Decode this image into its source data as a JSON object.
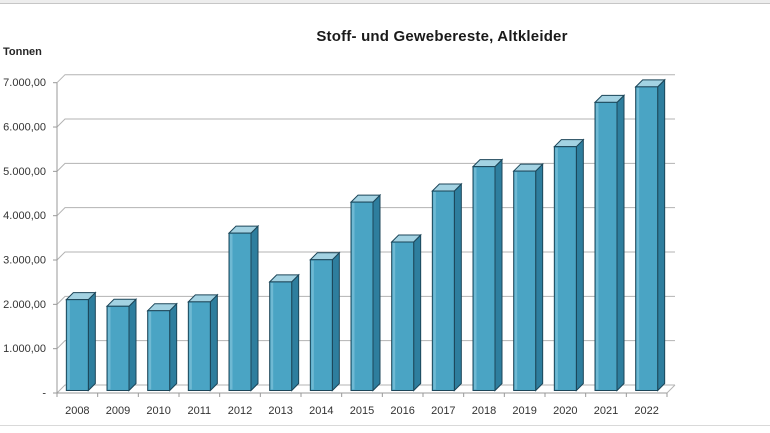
{
  "page": {
    "title": "Stoff- und Gewebereste, Altkleider",
    "y_axis_title": "Tonnen"
  },
  "chart_data": {
    "type": "bar",
    "style": "3d-column",
    "title": "Stoff- und Gewebereste, Altkleider",
    "ylabel": "Tonnen",
    "xlabel": "",
    "categories": [
      "2008",
      "2009",
      "2010",
      "2011",
      "2012",
      "2013",
      "2014",
      "2015",
      "2016",
      "2017",
      "2018",
      "2019",
      "2020",
      "2021",
      "2022"
    ],
    "values": [
      2050,
      1900,
      1800,
      2000,
      3550,
      2450,
      2950,
      4250,
      3350,
      4500,
      5050,
      4950,
      5500,
      6500,
      6850
    ],
    "ylim": [
      0,
      7000
    ],
    "ytick_interval": 1000,
    "ytick_labels": [
      "-",
      "1.000,00",
      "2.000,00",
      "3.000,00",
      "4.000,00",
      "5.000,00",
      "6.000,00",
      "7.000,00"
    ],
    "grid": true,
    "legend": "none",
    "colors": {
      "bar_front": "#4AA4C4",
      "bar_side": "#2E7E9E",
      "bar_top": "#A3D2E2",
      "bar_outline": "#1C4659",
      "gridline": "#B3B3B3",
      "axis": "#999999",
      "text": "#333333"
    }
  }
}
